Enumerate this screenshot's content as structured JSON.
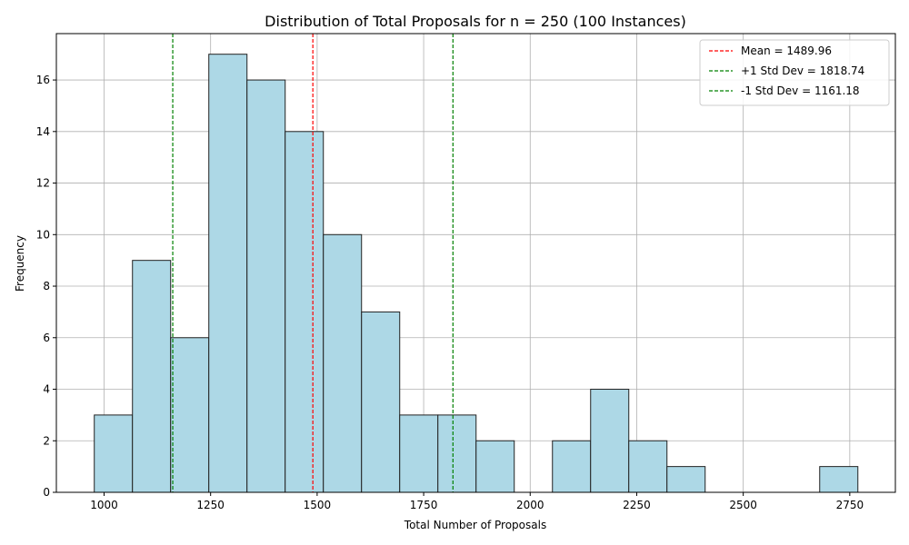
{
  "chart_data": {
    "type": "bar",
    "title": "Distribution of Total Proposals for n = 250 (100 Instances)",
    "xlabel": "Total Number of Proposals",
    "ylabel": "Frequency",
    "xlim": [
      888,
      2857
    ],
    "ylim": [
      0,
      17.8
    ],
    "xticks": [
      1000,
      1250,
      1500,
      1750,
      2000,
      2250,
      2500,
      2750
    ],
    "yticks": [
      0,
      2,
      4,
      6,
      8,
      10,
      12,
      14,
      16
    ],
    "grid": true,
    "bin_start": 977,
    "bin_width": 89.6,
    "frequencies": [
      3,
      9,
      6,
      17,
      16,
      14,
      10,
      7,
      3,
      3,
      2,
      0,
      2,
      4,
      2,
      1,
      0,
      0,
      0,
      1
    ],
    "colors": {
      "bar_fill": "#add8e6",
      "bar_edge": "#222222",
      "mean_line": "#ff0000",
      "std_line": "#008000",
      "grid": "#b0b0b0"
    },
    "reference_lines": [
      {
        "label": "Mean = 1489.96",
        "value": 1489.96,
        "color": "#ff0000"
      },
      {
        "label": "+1 Std Dev = 1818.74",
        "value": 1818.74,
        "color": "#008000"
      },
      {
        "label": "-1 Std Dev = 1161.18",
        "value": 1161.18,
        "color": "#008000"
      }
    ],
    "legend_position": "top-right"
  }
}
